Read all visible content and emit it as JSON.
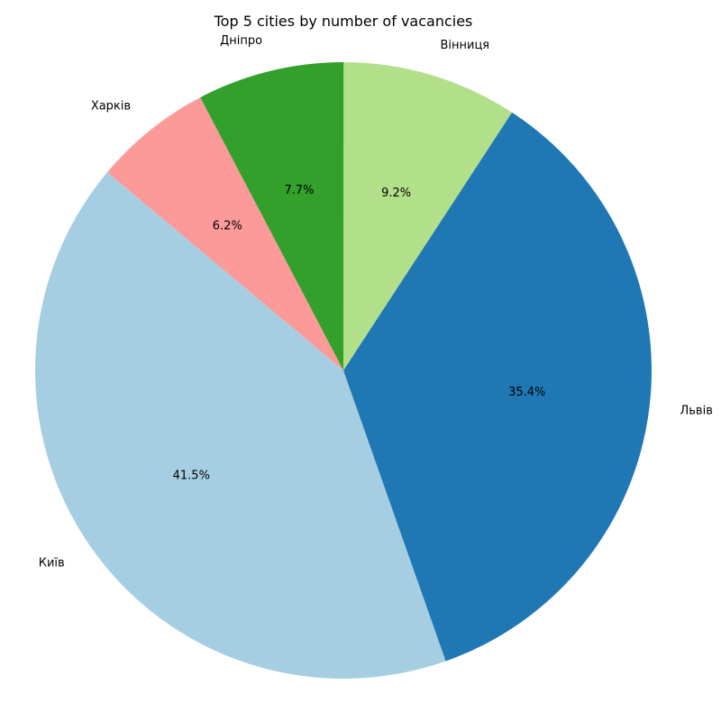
{
  "chart_data": {
    "type": "pie",
    "title": "Top 5 cities by number of vacancies",
    "categories": [
      "Київ",
      "Львів",
      "Вінниця",
      "Дніпро",
      "Харків"
    ],
    "values": [
      41.5,
      35.4,
      9.2,
      7.7,
      6.2
    ],
    "value_labels": [
      "41.5%",
      "35.4%",
      "9.2%",
      "7.7%",
      "6.2%"
    ],
    "colors": [
      "#a6cee3",
      "#1f78b4",
      "#b2df8a",
      "#33a02c",
      "#fb9a99"
    ],
    "start_angle_deg": 140,
    "direction": "counterclockwise",
    "legend": "none"
  }
}
